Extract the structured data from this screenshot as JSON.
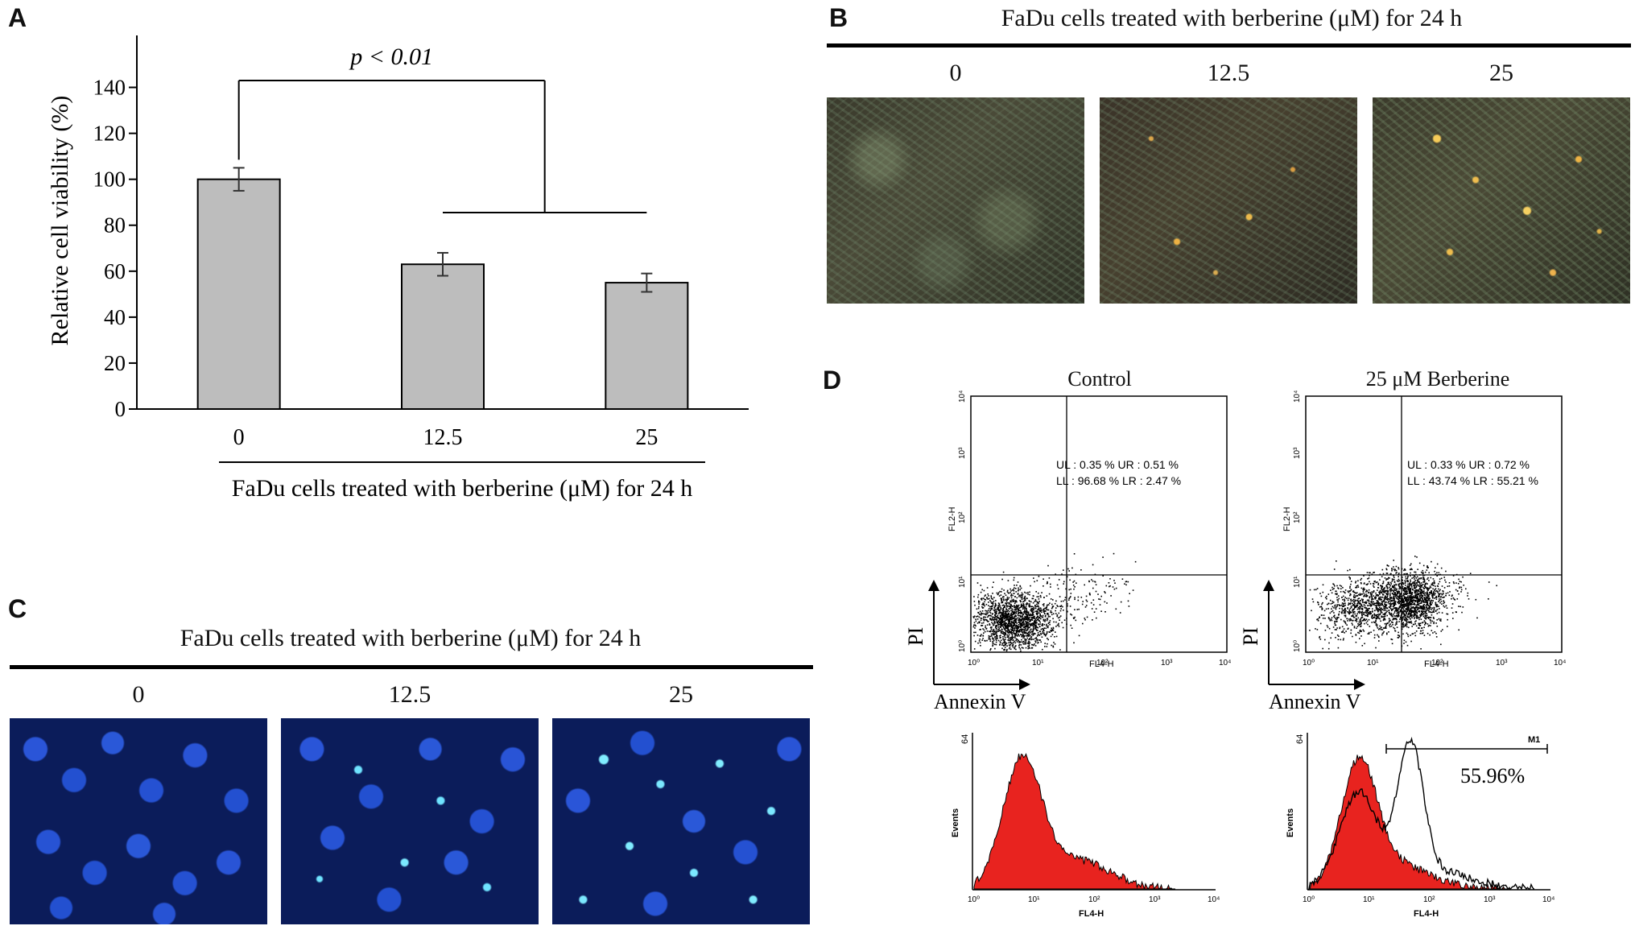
{
  "panels": {
    "A": {
      "letter": "A",
      "significance": "p < 0.01",
      "chart_data": {
        "type": "bar",
        "categories": [
          "0",
          "12.5",
          "25"
        ],
        "values": [
          100,
          63,
          55
        ],
        "errors": [
          5,
          5,
          4
        ],
        "ylabel": "Relative cell viability (%)",
        "xlabel": "FaDu cells treated with berberine (μM) for 24 h",
        "ylim": [
          0,
          150
        ],
        "yticks": [
          0,
          20,
          40,
          60,
          80,
          100,
          120,
          140
        ],
        "bar_color": "#bdbdbd",
        "grid": false
      }
    },
    "B": {
      "letter": "B",
      "title": "FaDu cells treated with berberine (μM) for 24 h",
      "doses": [
        "0",
        "12.5",
        "25"
      ]
    },
    "C": {
      "letter": "C",
      "title": "FaDu cells treated with berberine (μM) for 24 h",
      "doses": [
        "0",
        "12.5",
        "25"
      ]
    },
    "D": {
      "letter": "D",
      "plots": [
        {
          "title": "Control",
          "quad_line1": "UL : 0.35 %   UR : 0.51 %",
          "quad_line2": "LL : 96.68 %  LR : 2.47 %",
          "ylab": "FL2-H",
          "xlab": "FL4-H",
          "axis_y": "PI",
          "axis_x": "Annexin V",
          "decades": [
            "10⁰",
            "10¹",
            "10²",
            "10³",
            "10⁴"
          ]
        },
        {
          "title": "25 μM Berberine",
          "quad_line1": "UL : 0.33 %   UR : 0.72 %",
          "quad_line2": "LL : 43.74 %  LR : 55.21 %",
          "ylab": "FL2-H",
          "xlab": "FL4-H",
          "axis_y": "PI",
          "axis_x": "Annexin V",
          "decades": [
            "10⁰",
            "10¹",
            "10²",
            "10³",
            "10⁴"
          ]
        }
      ],
      "histograms": [
        {
          "ylab": "Events",
          "xlab": "FL4-H",
          "ymax": "64",
          "decades": [
            "10⁰",
            "10¹",
            "10²",
            "10³",
            "10⁴"
          ]
        },
        {
          "ylab": "Events",
          "xlab": "FL4-H",
          "ymax": "64",
          "gate": "M1",
          "percent": "55.96%",
          "decades": [
            "10⁰",
            "10¹",
            "10²",
            "10³",
            "10⁴"
          ]
        }
      ],
      "colors": {
        "histogram_fill": "#e8231f",
        "dots": "#000000"
      }
    }
  }
}
